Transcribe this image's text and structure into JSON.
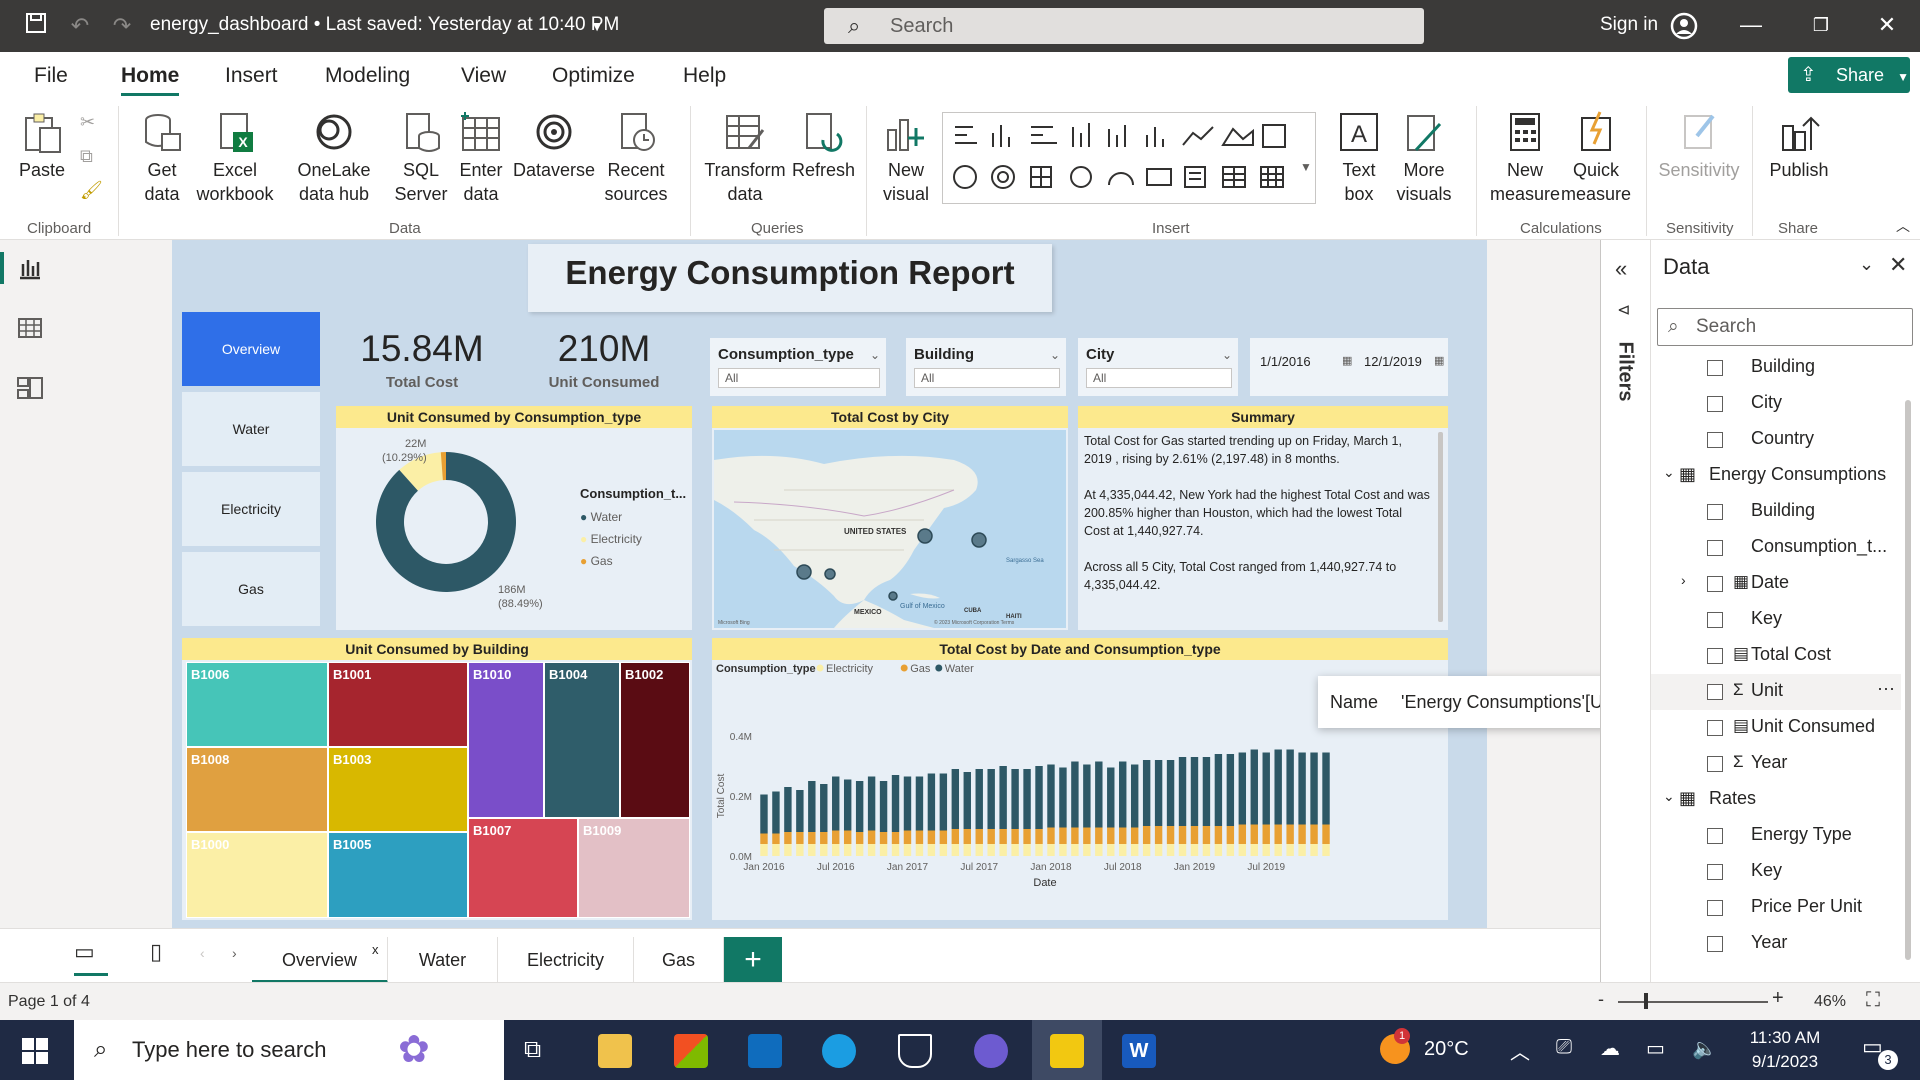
{
  "titlebar": {
    "title": "energy_dashboard • Last saved: Yesterday at 10:40 PM",
    "search_placeholder": "Search",
    "signin": "Sign in"
  },
  "menu": {
    "tabs": [
      "File",
      "Home",
      "Insert",
      "Modeling",
      "View",
      "Optimize",
      "Help"
    ],
    "share": "Share"
  },
  "ribbon": {
    "buttons": {
      "paste": "Paste",
      "get_data": "Get data",
      "excel": "Excel workbook",
      "onelake": "OneLake data hub",
      "sql": "SQL Server",
      "enter": "Enter data",
      "dataverse": "Dataverse",
      "recent": "Recent sources",
      "transform": "Transform data",
      "refresh": "Refresh",
      "new_visual": "New visual",
      "text_box": "Text box",
      "more_visuals": "More visuals",
      "new_measure": "New measure",
      "quick_measure": "Quick measure",
      "sensitivity": "Sensitivity",
      "publish": "Publish"
    },
    "groups": {
      "clipboard": "Clipboard",
      "data": "Data",
      "queries": "Queries",
      "insert": "Insert",
      "calculations": "Calculations",
      "sensitivity": "Sensitivity",
      "share": "Share"
    }
  },
  "report": {
    "title": "Energy Consumption Report",
    "nav": [
      "Overview",
      "Water",
      "Electricity",
      "Gas"
    ],
    "kpis": [
      {
        "value": "15.84M",
        "label": "Total Cost"
      },
      {
        "value": "210M",
        "label": "Unit Consumed"
      }
    ],
    "slicers": [
      {
        "title": "Consumption_type",
        "value": "All"
      },
      {
        "title": "Building",
        "value": "All"
      },
      {
        "title": "City",
        "value": "All"
      }
    ],
    "date_range": {
      "start": "1/1/2016",
      "end": "12/1/2019"
    },
    "donut": {
      "title": "Unit Consumed by Consumption_type",
      "legend_title": "Consumption_t...",
      "top_label": "22M",
      "top_pct": "(10.29%)",
      "bottom_label": "186M",
      "bottom_pct": "(88.49%)"
    },
    "map": {
      "title": "Total Cost by City",
      "labels": {
        "us": "UNITED STATES",
        "mexico": "MEXICO",
        "gulf": "Gulf of Mexico",
        "cuba": "CUBA",
        "haiti": "HAITI",
        "sargasso": "Sargasso Sea"
      },
      "credit": "Microsoft Bing",
      "copyright": "© 2023 Microsoft Corporation Terms"
    },
    "summary": {
      "title": "Summary",
      "p1": "Total Cost for Gas started trending up on Friday, March 1, 2019 , rising by 2.61% (2,197.48) in 8 months.",
      "p2": "At 4,335,044.42, New York had the highest Total Cost and was 200.85% higher than Houston, which had the lowest Total Cost at 1,440,927.74.",
      "p3": "Across all 5 City, Total Cost ranged from 1,440,927.74 to 4,335,044.42."
    },
    "treemap": {
      "title": "Unit Consumed by Building",
      "cells": [
        "B1006",
        "B1001",
        "B1010",
        "B1004",
        "B1002",
        "B1008",
        "B1003",
        "B1000",
        "B1005",
        "B1007",
        "B1009"
      ]
    },
    "bar_title": "Total Cost by Date and Consumption_type",
    "tooltip": {
      "key": "Name",
      "value": "'Energy Consumptions'[Unit]"
    }
  },
  "chart_data": [
    {
      "type": "pie",
      "title": "Unit Consumed by Consumption_type",
      "categories": [
        "Water",
        "Electricity",
        "Gas"
      ],
      "values": [
        186,
        22,
        2.5
      ],
      "colors": [
        "#2d5866",
        "#fbefa6",
        "#e8a033"
      ]
    },
    {
      "type": "bar",
      "title": "Total Cost by Date and Consumption_type",
      "xlabel": "Date",
      "ylabel": "Total Cost",
      "legend_title": "Consumption_type",
      "legend_position": "top-left",
      "ylim": [
        0,
        0.4
      ],
      "yticks": [
        "0.0M",
        "0.2M",
        "0.4M"
      ],
      "xticks": [
        "Jan 2016",
        "Jul 2016",
        "Jan 2017",
        "Jul 2017",
        "Jan 2018",
        "Jul 2018",
        "Jan 2019",
        "Jul 2019"
      ],
      "series": [
        {
          "name": "Electricity",
          "color": "#fbefa6",
          "values": [
            0.04,
            0.04,
            0.04,
            0.04,
            0.04,
            0.04,
            0.04,
            0.04,
            0.04,
            0.04,
            0.04,
            0.04,
            0.04,
            0.04,
            0.04,
            0.04,
            0.04,
            0.04,
            0.04,
            0.04,
            0.04,
            0.04,
            0.04,
            0.04,
            0.04,
            0.04,
            0.04,
            0.04,
            0.04,
            0.04,
            0.04,
            0.04,
            0.04,
            0.04,
            0.04,
            0.04,
            0.04,
            0.04,
            0.04,
            0.04,
            0.04,
            0.04,
            0.04,
            0.04,
            0.04,
            0.04,
            0.04,
            0.04
          ]
        },
        {
          "name": "Gas",
          "color": "#e8a033",
          "values": [
            0.035,
            0.035,
            0.04,
            0.04,
            0.04,
            0.04,
            0.045,
            0.045,
            0.04,
            0.045,
            0.04,
            0.04,
            0.045,
            0.045,
            0.045,
            0.045,
            0.05,
            0.05,
            0.05,
            0.05,
            0.05,
            0.05,
            0.05,
            0.05,
            0.055,
            0.055,
            0.055,
            0.055,
            0.055,
            0.055,
            0.055,
            0.055,
            0.06,
            0.06,
            0.06,
            0.06,
            0.06,
            0.06,
            0.06,
            0.06,
            0.065,
            0.065,
            0.065,
            0.065,
            0.065,
            0.065,
            0.065,
            0.065
          ]
        },
        {
          "name": "Water",
          "color": "#2d5866",
          "values": [
            0.13,
            0.14,
            0.15,
            0.14,
            0.17,
            0.16,
            0.18,
            0.17,
            0.17,
            0.18,
            0.17,
            0.19,
            0.18,
            0.18,
            0.19,
            0.19,
            0.2,
            0.19,
            0.2,
            0.2,
            0.21,
            0.2,
            0.2,
            0.21,
            0.21,
            0.2,
            0.22,
            0.21,
            0.22,
            0.2,
            0.22,
            0.21,
            0.22,
            0.22,
            0.22,
            0.23,
            0.23,
            0.23,
            0.24,
            0.24,
            0.24,
            0.25,
            0.24,
            0.25,
            0.25,
            0.24,
            0.24,
            0.24
          ]
        }
      ]
    }
  ],
  "filters": {
    "label": "Filters"
  },
  "data_pane": {
    "title": "Data",
    "search_placeholder": "Search",
    "items": [
      {
        "label": "Building",
        "kind": "field",
        "indent": 1
      },
      {
        "label": "City",
        "kind": "field",
        "indent": 1
      },
      {
        "label": "Country",
        "kind": "field",
        "indent": 1
      },
      {
        "label": "Energy Consumptions",
        "kind": "table",
        "indent": 0
      },
      {
        "label": "Building",
        "kind": "field",
        "indent": 1
      },
      {
        "label": "Consumption_t...",
        "kind": "field",
        "indent": 1
      },
      {
        "label": "Date",
        "kind": "date",
        "indent": 1
      },
      {
        "label": "Key",
        "kind": "field",
        "indent": 1
      },
      {
        "label": "Total Cost",
        "kind": "measure",
        "indent": 1
      },
      {
        "label": "Unit",
        "kind": "sum",
        "indent": 1
      },
      {
        "label": "Unit Consumed",
        "kind": "measure",
        "indent": 1
      },
      {
        "label": "Year",
        "kind": "sum",
        "indent": 1
      },
      {
        "label": "Rates",
        "kind": "table",
        "indent": 0
      },
      {
        "label": "Energy Type",
        "kind": "field",
        "indent": 1
      },
      {
        "label": "Key",
        "kind": "field",
        "indent": 1
      },
      {
        "label": "Price Per Unit",
        "kind": "field",
        "indent": 1
      },
      {
        "label": "Year",
        "kind": "field",
        "indent": 1
      }
    ]
  },
  "page_tabs": [
    "Overview",
    "Water",
    "Electricity",
    "Gas"
  ],
  "status": {
    "page": "Page 1 of 4",
    "zoom": "46%"
  },
  "taskbar": {
    "search": "Type here to search",
    "weather": "20°C",
    "time": "11:30 AM",
    "date": "9/1/2023",
    "notification_badge": "1",
    "action_badge": "3"
  }
}
